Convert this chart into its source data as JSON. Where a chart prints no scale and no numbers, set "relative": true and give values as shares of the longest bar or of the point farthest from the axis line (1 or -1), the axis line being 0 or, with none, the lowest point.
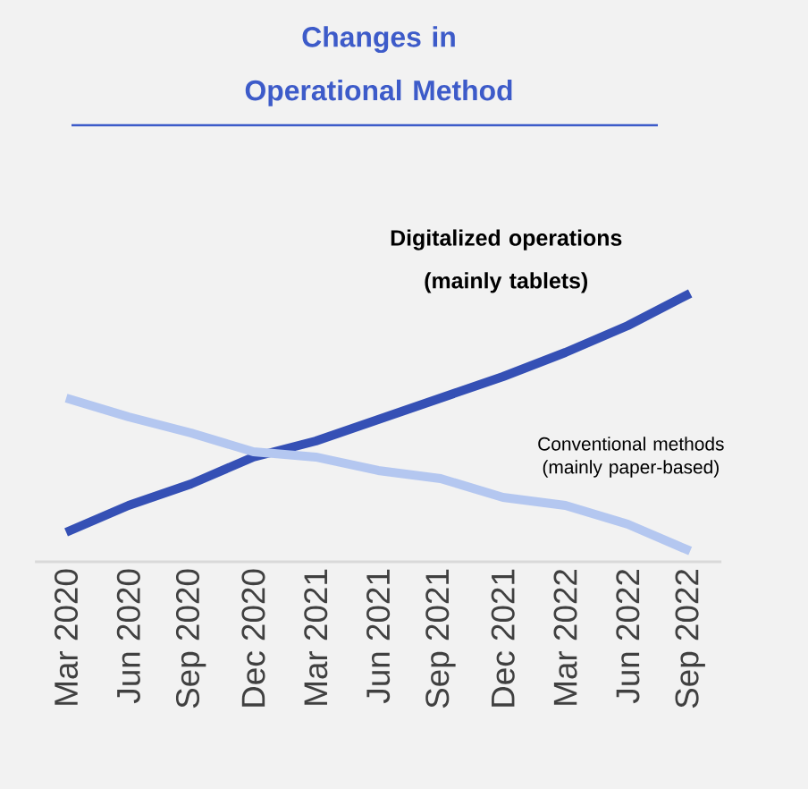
{
  "chart_data": {
    "type": "line",
    "title": "Changes in Operational Method",
    "relative": true,
    "categories": [
      "Mar 2020",
      "Jun 2020",
      "Sep 2020",
      "Dec 2020",
      "Mar 2021",
      "Jun 2021",
      "Sep 2021",
      "Dec 2021",
      "Mar 2022",
      "Jun 2022",
      "Sep 2022"
    ],
    "series": [
      {
        "name": "Digitalized operations (mainly tablets)",
        "color": "#3550b5",
        "values": [
          0.11,
          0.21,
          0.29,
          0.39,
          0.45,
          0.53,
          0.61,
          0.69,
          0.78,
          0.88,
          1
        ]
      },
      {
        "name": "Conventional methods (mainly paper-based)",
        "color": "#b4c7f0",
        "values": [
          0.61,
          0.54,
          0.48,
          0.41,
          0.39,
          0.34,
          0.31,
          0.24,
          0.21,
          0.14,
          0.04
        ]
      }
    ],
    "grid": false,
    "marker": "none",
    "line_style": "solid"
  }
}
